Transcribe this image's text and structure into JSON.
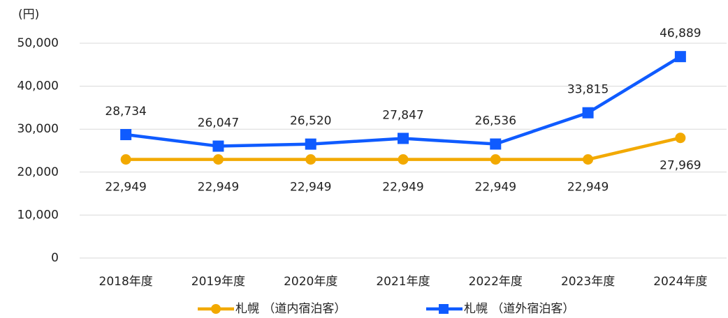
{
  "chart_data": {
    "type": "line",
    "y_unit_label": "(円)",
    "categories": [
      "2018年度",
      "2019年度",
      "2020年度",
      "2021年度",
      "2022年度",
      "2023年度",
      "2024年度"
    ],
    "series": [
      {
        "name": "札幌 （道内宿泊客）",
        "color": "#f2a900",
        "marker": "circle",
        "values": [
          22949,
          22949,
          22949,
          22949,
          22949,
          22949,
          27969
        ],
        "value_labels": [
          "22,949",
          "22,949",
          "22,949",
          "22,949",
          "22,949",
          "22,949",
          "27,969"
        ]
      },
      {
        "name": "札幌 （道外宿泊客）",
        "color": "#0f5bff",
        "marker": "square",
        "values": [
          28734,
          26047,
          26520,
          27847,
          26536,
          33815,
          46889
        ],
        "value_labels": [
          "28,734",
          "26,047",
          "26,520",
          "27,847",
          "26,536",
          "33,815",
          "46,889"
        ]
      }
    ],
    "ylim": [
      0,
      50000
    ],
    "yticks": [
      0,
      {
        "value": 10000,
        "label": "10,000"
      },
      {
        "value": 20000,
        "label": "20,000"
      },
      {
        "value": 30000,
        "label": "30,000"
      },
      {
        "value": 40000,
        "label": "40,000"
      },
      {
        "value": 50000,
        "label": "50,000"
      }
    ],
    "grid": true,
    "legend": "bottom"
  }
}
